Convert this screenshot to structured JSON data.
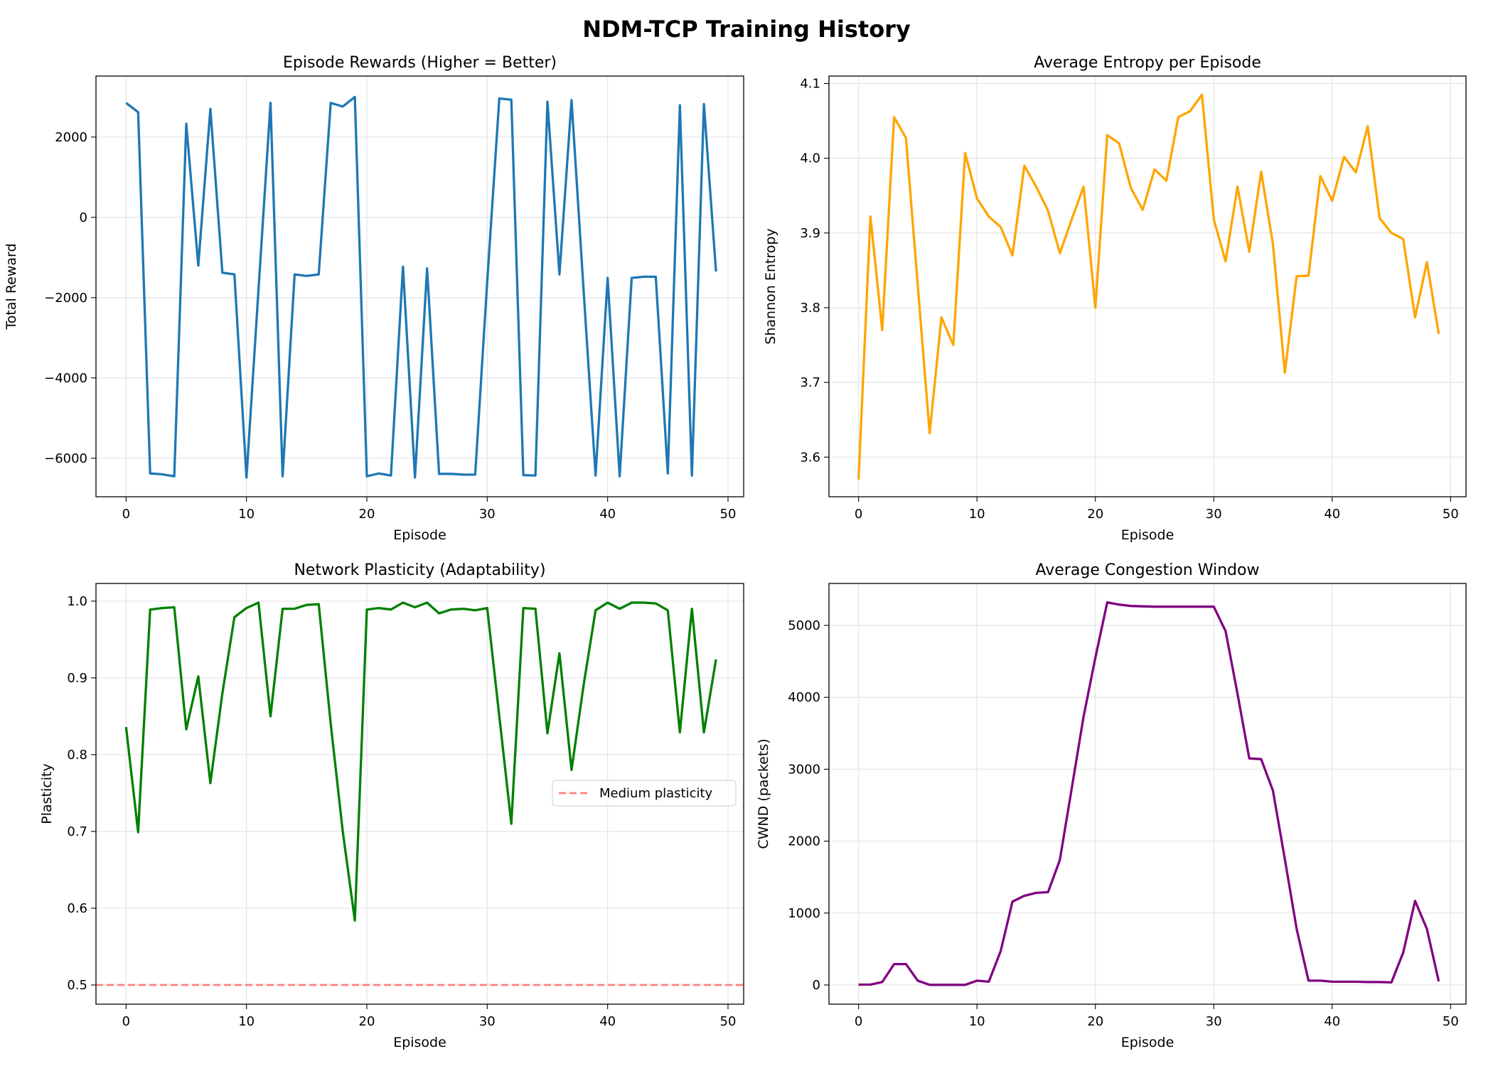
{
  "suptitle": "NDM-TCP Training History",
  "chart_data": [
    {
      "type": "line",
      "title": "Episode Rewards (Higher = Better)",
      "xlabel": "Episode",
      "ylabel": "Total Reward",
      "xlim": [
        -2.5,
        51.3
      ],
      "ylim": [
        -6960,
        3520
      ],
      "xticks": [
        0,
        10,
        20,
        30,
        40,
        50
      ],
      "yticks": [
        -6000,
        -4000,
        -2000,
        0,
        2000
      ],
      "ytick_labels": [
        "−6000",
        "−4000",
        "−2000",
        "0",
        "2000"
      ],
      "grid": true,
      "color": "#1f77b4",
      "x": [
        0,
        1,
        2,
        3,
        4,
        5,
        6,
        7,
        8,
        9,
        10,
        11,
        12,
        13,
        14,
        15,
        16,
        17,
        18,
        19,
        20,
        21,
        22,
        23,
        24,
        25,
        26,
        27,
        28,
        29,
        30,
        31,
        32,
        33,
        34,
        35,
        36,
        37,
        38,
        39,
        40,
        41,
        42,
        43,
        44,
        45,
        46,
        47,
        48,
        49
      ],
      "values": [
        2850,
        2620,
        -6380,
        -6400,
        -6450,
        2330,
        -1200,
        2700,
        -1380,
        -1420,
        -6480,
        -1800,
        2850,
        -6450,
        -1420,
        -1460,
        -1420,
        2850,
        2760,
        3000,
        -6450,
        -6380,
        -6430,
        -1230,
        -6480,
        -1270,
        -6390,
        -6390,
        -6410,
        -6410,
        -1600,
        2960,
        2930,
        -6420,
        -6430,
        2880,
        -1420,
        2920,
        -1800,
        -6430,
        -1510,
        -6450,
        -1510,
        -1480,
        -1480,
        -6380,
        2790,
        -6430,
        2820,
        -1350
      ]
    },
    {
      "type": "line",
      "title": "Average Entropy per Episode",
      "xlabel": "Episode",
      "ylabel": "Shannon Entropy",
      "xlim": [
        -2.5,
        51.3
      ],
      "ylim": [
        3.547,
        4.11
      ],
      "xticks": [
        0,
        10,
        20,
        30,
        40,
        50
      ],
      "yticks": [
        3.6,
        3.7,
        3.8,
        3.9,
        4.0,
        4.1
      ],
      "ytick_labels": [
        "3.6",
        "3.7",
        "3.8",
        "3.9",
        "4.0",
        "4.1"
      ],
      "grid": true,
      "color": "#ffa500",
      "x": [
        0,
        1,
        2,
        3,
        4,
        5,
        6,
        7,
        8,
        9,
        10,
        11,
        12,
        13,
        14,
        15,
        16,
        17,
        18,
        19,
        20,
        21,
        22,
        23,
        24,
        25,
        26,
        27,
        28,
        29,
        30,
        31,
        32,
        33,
        34,
        35,
        36,
        37,
        38,
        39,
        40,
        41,
        42,
        43,
        44,
        45,
        46,
        47,
        48,
        49
      ],
      "values": [
        3.57,
        3.922,
        3.77,
        4.055,
        4.027,
        3.83,
        3.632,
        3.787,
        3.75,
        4.007,
        3.946,
        3.922,
        3.908,
        3.87,
        3.99,
        3.962,
        3.93,
        3.873,
        3.918,
        3.962,
        3.8,
        4.031,
        4.02,
        3.96,
        3.931,
        3.985,
        3.97,
        4.055,
        4.063,
        4.085,
        3.918,
        3.862,
        3.962,
        3.875,
        3.982,
        3.885,
        3.713,
        3.842,
        3.843,
        3.976,
        3.943,
        4.002,
        3.981,
        4.043,
        3.92,
        3.9,
        3.892,
        3.787,
        3.861,
        3.765
      ]
    },
    {
      "type": "line",
      "title": "Network Plasticity (Adaptability)",
      "xlabel": "Episode",
      "ylabel": "Plasticity",
      "xlim": [
        -2.5,
        51.3
      ],
      "ylim": [
        0.475,
        1.023
      ],
      "xticks": [
        0,
        10,
        20,
        30,
        40,
        50
      ],
      "yticks": [
        0.5,
        0.6,
        0.7,
        0.8,
        0.9,
        1.0
      ],
      "ytick_labels": [
        "0.5",
        "0.6",
        "0.7",
        "0.8",
        "0.9",
        "1.0"
      ],
      "grid": true,
      "color": "#008000",
      "x": [
        0,
        1,
        2,
        3,
        4,
        5,
        6,
        7,
        8,
        9,
        10,
        11,
        12,
        13,
        14,
        15,
        16,
        17,
        18,
        19,
        20,
        21,
        22,
        23,
        24,
        25,
        26,
        27,
        28,
        29,
        30,
        31,
        32,
        33,
        34,
        35,
        36,
        37,
        38,
        39,
        40,
        41,
        42,
        43,
        44,
        45,
        46,
        47,
        48,
        49
      ],
      "values": [
        0.836,
        0.699,
        0.989,
        0.991,
        0.992,
        0.833,
        0.902,
        0.763,
        0.88,
        0.979,
        0.991,
        0.998,
        0.85,
        0.99,
        0.99,
        0.995,
        0.996,
        0.84,
        0.7,
        0.584,
        0.989,
        0.991,
        0.989,
        0.998,
        0.992,
        0.998,
        0.984,
        0.989,
        0.99,
        0.988,
        0.991,
        0.85,
        0.71,
        0.991,
        0.99,
        0.828,
        0.932,
        0.78,
        0.89,
        0.988,
        0.998,
        0.99,
        0.998,
        0.998,
        0.997,
        0.988,
        0.829,
        0.99,
        0.829,
        0.924
      ],
      "hline": {
        "y": 0.5,
        "label": "Medium plasticity",
        "color": "#ff7f7f",
        "style": "dashed"
      },
      "legend": "center-right"
    },
    {
      "type": "line",
      "title": "Average Congestion Window",
      "xlabel": "Episode",
      "ylabel": "CWND (packets)",
      "xlim": [
        -2.5,
        51.3
      ],
      "ylim": [
        -267,
        5583
      ],
      "xticks": [
        0,
        10,
        20,
        30,
        40,
        50
      ],
      "yticks": [
        0,
        1000,
        2000,
        3000,
        4000,
        5000
      ],
      "ytick_labels": [
        "0",
        "1000",
        "2000",
        "3000",
        "4000",
        "5000"
      ],
      "grid": true,
      "color": "#800080",
      "x": [
        0,
        1,
        2,
        3,
        4,
        5,
        6,
        7,
        8,
        9,
        10,
        11,
        12,
        13,
        14,
        15,
        16,
        17,
        18,
        19,
        20,
        21,
        22,
        23,
        24,
        25,
        26,
        27,
        28,
        29,
        30,
        31,
        32,
        33,
        34,
        35,
        36,
        37,
        38,
        39,
        40,
        41,
        42,
        43,
        44,
        45,
        46,
        47,
        48,
        49
      ],
      "values": [
        5,
        5,
        40,
        290,
        290,
        60,
        2,
        2,
        2,
        2,
        60,
        45,
        470,
        1160,
        1240,
        1280,
        1290,
        1740,
        2730,
        3730,
        4550,
        5320,
        5290,
        5270,
        5265,
        5260,
        5260,
        5260,
        5260,
        5260,
        5260,
        4920,
        4050,
        3150,
        3140,
        2700,
        1750,
        780,
        60,
        60,
        45,
        45,
        45,
        40,
        40,
        35,
        450,
        1170,
        780,
        50
      ]
    }
  ]
}
